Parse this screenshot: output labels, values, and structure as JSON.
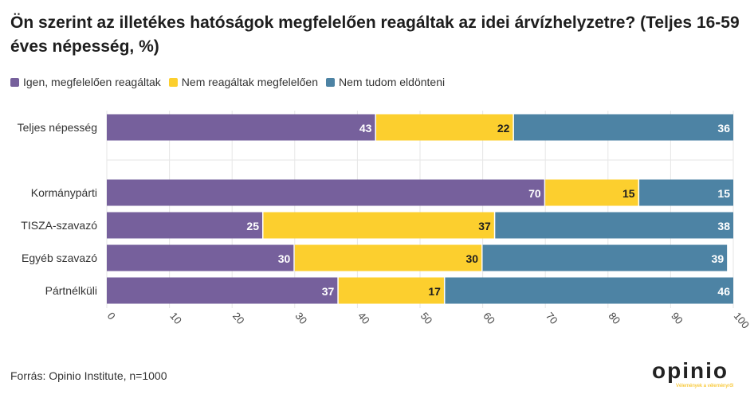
{
  "title": "Ön szerint az illetékes hatóságok megfelelően reagáltak az idei árvízhelyzetre? (Teljes 16-59 éves népesség, %)",
  "legend": [
    {
      "label": "Igen, megfelelően reagáltak",
      "color": "#76609c"
    },
    {
      "label": "Nem reagáltak megfelelően",
      "color": "#fccf2e"
    },
    {
      "label": "Nem tudom eldönteni",
      "color": "#4d83a4"
    }
  ],
  "source": "Forrás: Opinio Institute, n=1000",
  "logo": {
    "text": "opinio",
    "tagline": "Vélemények a véleményről"
  },
  "chart_data": {
    "type": "bar",
    "orientation": "horizontal",
    "stacked": true,
    "categories": [
      "Teljes népesség",
      "Kormánypárti",
      "TISZA-szavazó",
      "Egyéb szavazó",
      "Pártnélküli"
    ],
    "series": [
      {
        "name": "Igen, megfelelően reagáltak",
        "color": "#76609c",
        "values": [
          43,
          70,
          25,
          30,
          37
        ]
      },
      {
        "name": "Nem reagáltak megfelelően",
        "color": "#fccf2e",
        "values": [
          22,
          15,
          37,
          30,
          17
        ]
      },
      {
        "name": "Nem tudom eldönteni",
        "color": "#4d83a4",
        "values": [
          36,
          15,
          38,
          39,
          46
        ]
      }
    ],
    "ticks": [
      "0",
      "10",
      "20",
      "30",
      "40",
      "50",
      "60",
      "70",
      "80",
      "90",
      "100"
    ],
    "xlim": [
      0,
      100
    ],
    "grid": true,
    "legend_position": "top-left"
  }
}
